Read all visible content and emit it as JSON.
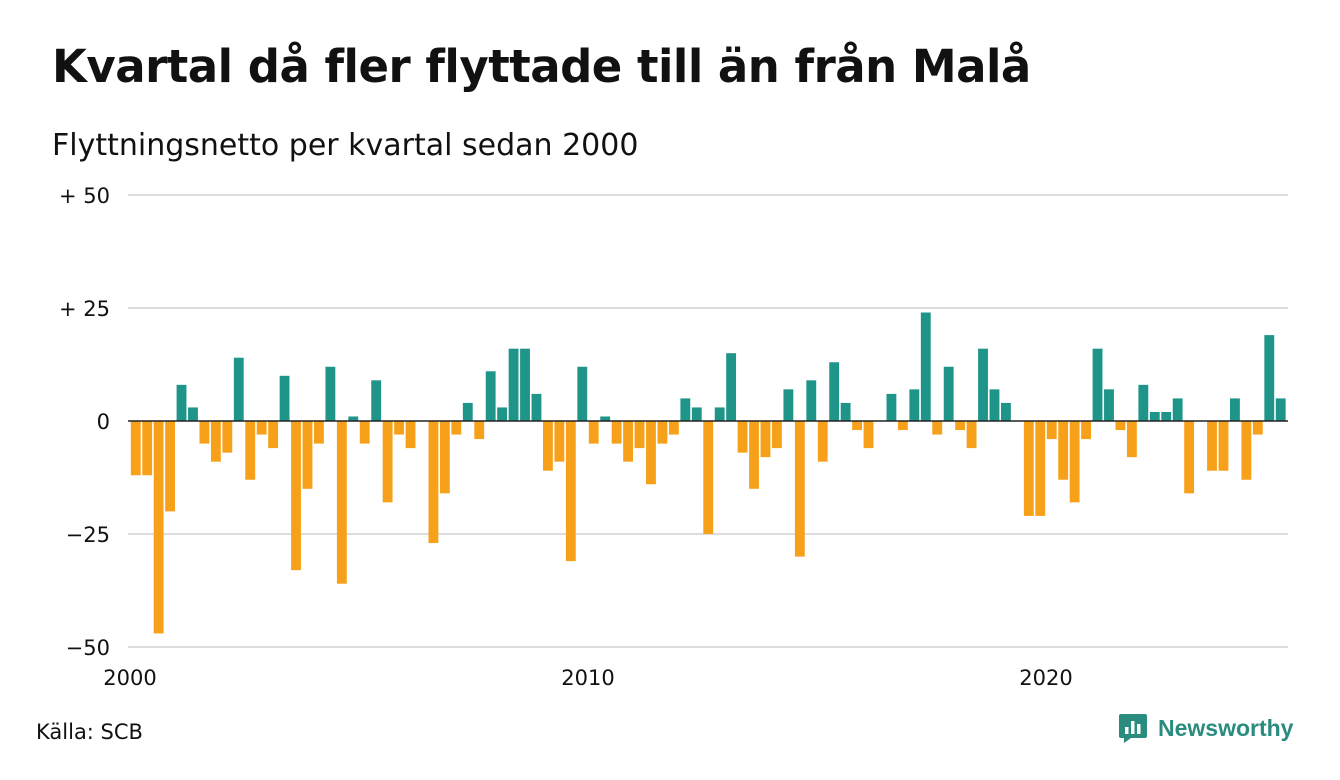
{
  "header": {
    "title": "Kvartal då fler flyttade till än från Malå",
    "subtitle": "Flyttningsnetto per kvartal sedan 2000"
  },
  "footer": {
    "source": "Källa: SCB",
    "brand": "Newsworthy",
    "brand_icon": "newsworthy-logo-icon"
  },
  "colors": {
    "positive": "#1f9488",
    "negative": "#f7a11a",
    "grid": "#dddddd",
    "zero_line": "#222222",
    "brand": "#2a8c7f"
  },
  "chart_data": {
    "type": "bar",
    "title": "Kvartal då fler flyttade till än från Malå",
    "subtitle": "Flyttningsnetto per kvartal sedan 2000",
    "start_year": 2000,
    "quarters_per_year": 4,
    "ylim": [
      -50,
      50
    ],
    "y_ticks": [
      {
        "value": 50,
        "label": "+ 50"
      },
      {
        "value": 25,
        "label": "+ 25"
      },
      {
        "value": 0,
        "label": "0"
      },
      {
        "value": -25,
        "label": "−25"
      },
      {
        "value": -50,
        "label": "−50"
      }
    ],
    "x_ticks": [
      {
        "year": 2000,
        "label": "2000"
      },
      {
        "year": 2010,
        "label": "2010"
      },
      {
        "year": 2020,
        "label": "2020"
      }
    ],
    "grid": true,
    "values": [
      -12,
      -12,
      -47,
      -20,
      8,
      3,
      -5,
      -9,
      -7,
      14,
      -13,
      -3,
      -6,
      10,
      -33,
      -15,
      -5,
      12,
      -36,
      1,
      -5,
      9,
      -18,
      -3,
      -6,
      0,
      -27,
      -16,
      -3,
      4,
      -4,
      11,
      3,
      16,
      16,
      6,
      -11,
      -9,
      -31,
      12,
      -5,
      1,
      -5,
      -9,
      -6,
      -14,
      -5,
      -3,
      5,
      3,
      -25,
      3,
      15,
      -7,
      -15,
      -8,
      -6,
      7,
      -30,
      9,
      -9,
      13,
      4,
      -2,
      -6,
      0,
      6,
      -2,
      7,
      24,
      -3,
      12,
      -2,
      -6,
      16,
      7,
      4,
      0,
      -21,
      -21,
      -4,
      -13,
      -18,
      -4,
      16,
      7,
      -2,
      -8,
      8,
      2,
      2,
      5,
      -16,
      0,
      -11,
      -11,
      5,
      -13,
      -3,
      19,
      5
    ]
  }
}
